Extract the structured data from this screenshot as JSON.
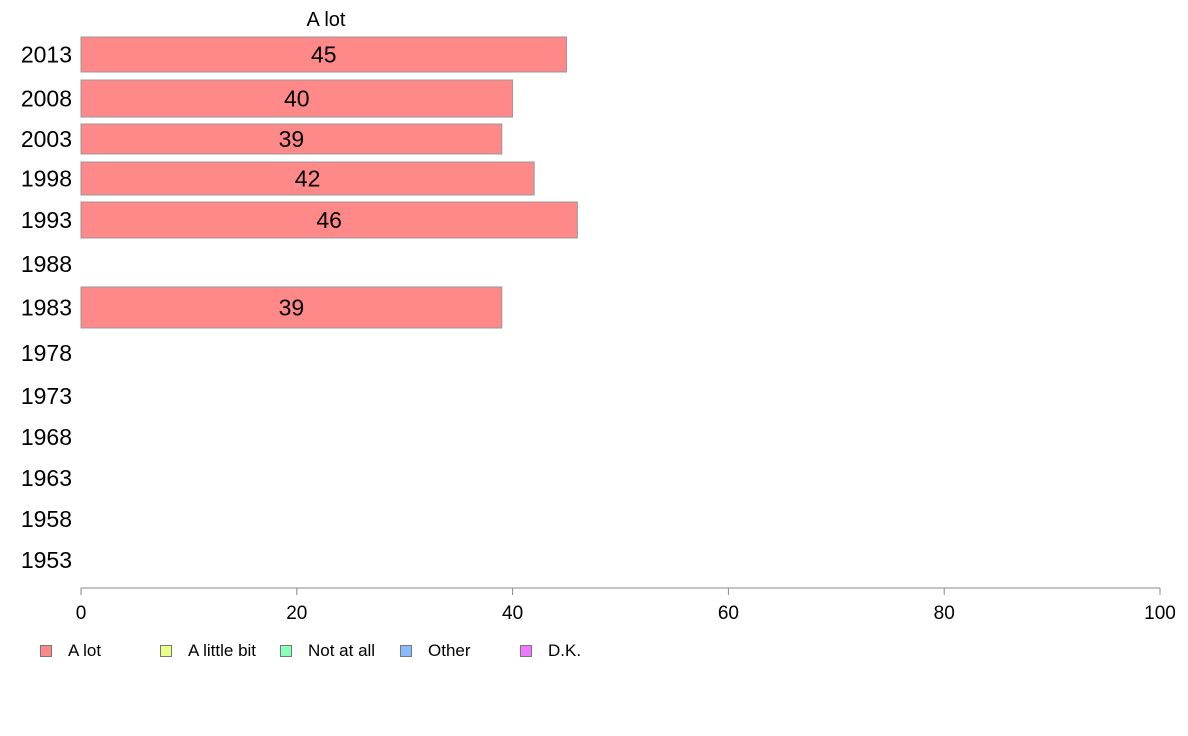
{
  "chart_data": {
    "type": "bar",
    "orientation": "horizontal",
    "panel_title": "A lot",
    "categories": [
      "2013",
      "2008",
      "2003",
      "1998",
      "1993",
      "1988",
      "1983",
      "1978",
      "1973",
      "1968",
      "1963",
      "1958",
      "1953"
    ],
    "series": [
      {
        "name": "A lot",
        "color": "#ff8888",
        "values": [
          45,
          40,
          39,
          42,
          46,
          null,
          39,
          null,
          null,
          null,
          null,
          null,
          null
        ]
      }
    ],
    "xlim": [
      0,
      100
    ],
    "xticks": [
      0,
      20,
      40,
      60,
      80,
      100
    ],
    "grid": false,
    "legend_position": "bottom-left",
    "legend": [
      {
        "label": "A lot",
        "color": "#ff8888"
      },
      {
        "label": "A little bit",
        "color": "#e8ff88"
      },
      {
        "label": "Not at all",
        "color": "#88ffbb"
      },
      {
        "label": "Other",
        "color": "#88bbff"
      },
      {
        "label": "D.K.",
        "color": "#ee77ff"
      }
    ]
  }
}
